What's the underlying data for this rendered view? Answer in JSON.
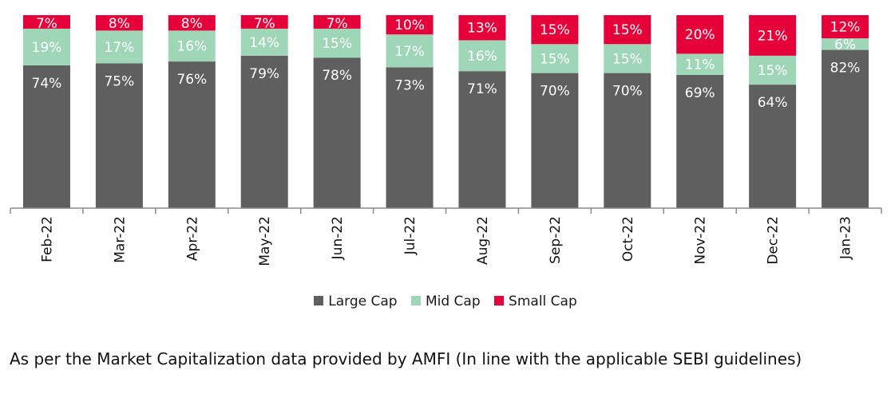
{
  "chart_data": {
    "type": "bar",
    "stacked": true,
    "categories": [
      "Feb-22",
      "Mar-22",
      "Apr-22",
      "May-22",
      "Jun-22",
      "Jul-22",
      "Aug-22",
      "Sep-22",
      "Oct-22",
      "Nov-22",
      "Dec-22",
      "Jan-23"
    ],
    "series": [
      {
        "name": "Large Cap",
        "color": "#5f5f5f",
        "values": [
          74,
          75,
          76,
          79,
          78,
          73,
          71,
          70,
          70,
          69,
          64,
          82
        ]
      },
      {
        "name": "Mid Cap",
        "color": "#9fd6b8",
        "values": [
          19,
          17,
          16,
          14,
          15,
          17,
          16,
          15,
          15,
          11,
          15,
          6
        ]
      },
      {
        "name": "Small Cap",
        "color": "#e5003a",
        "values": [
          7,
          8,
          8,
          7,
          7,
          10,
          13,
          15,
          15,
          20,
          21,
          12
        ]
      }
    ],
    "value_suffix": "%",
    "ylim": [
      0,
      100
    ],
    "legend_position": "bottom"
  },
  "caption": "As per the Market Capitalization data provided by AMFI (In line with the applicable SEBI guidelines)"
}
